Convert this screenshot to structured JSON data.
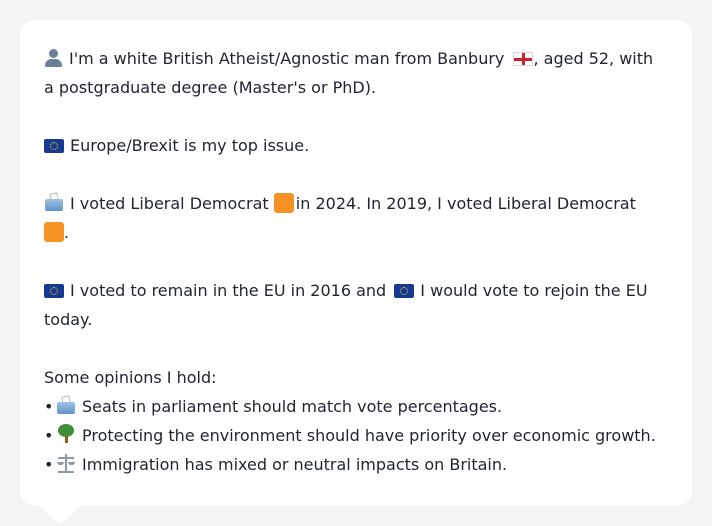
{
  "profile": {
    "line1_a": "I'm a white British Atheist/Agnostic man from Banbury",
    "line1_b": ", aged 52, with",
    "line2": "a postgraduate degree (Master's or PhD)."
  },
  "issue": {
    "text": "Europe/Brexit is my top issue."
  },
  "vote": {
    "part1": "I voted Liberal Democrat",
    "part2": "in 2024. In 2019, I voted Liberal Democrat",
    "part3": "."
  },
  "eu": {
    "part1": "I voted to remain in the EU in 2016 and",
    "part2": "I would vote to rejoin the EU",
    "part3": "today."
  },
  "opinions": {
    "heading": "Some opinions I hold:",
    "bullet": "•",
    "items": [
      {
        "icon": "ballot-box-icon",
        "text": "Seats in parliament should match vote percentages."
      },
      {
        "icon": "tree-icon",
        "text": "Protecting the environment should have priority over economic growth."
      },
      {
        "icon": "scales-icon",
        "text": "Immigration has mixed or neutral impacts on Britain."
      }
    ]
  },
  "colors": {
    "background": "#f3f4f6",
    "card": "#ffffff",
    "text": "#1f2430",
    "libdem_orange": "#f59226"
  }
}
